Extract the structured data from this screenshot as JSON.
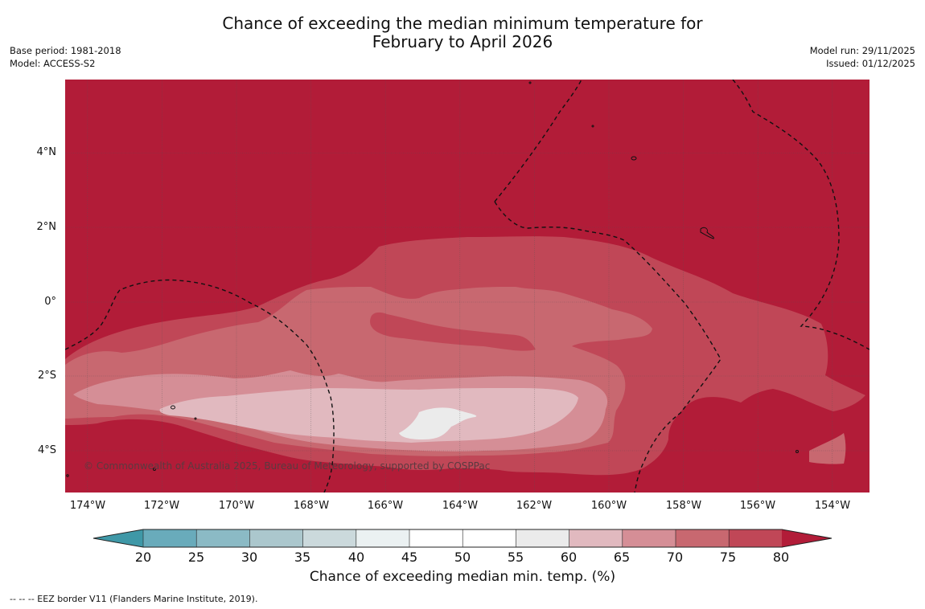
{
  "title": {
    "line1": "Chance of exceeding the median minimum temperature for",
    "line2": "February to April 2026"
  },
  "meta_left": {
    "base_period": "Base period: 1981-2018",
    "model": "Model: ACCESS-S2"
  },
  "meta_right": {
    "model_run": "Model run: 29/11/2025",
    "issued": "Issued: 01/12/2025"
  },
  "map": {
    "lat_labels": [
      "4°N",
      "2°N",
      "0°",
      "2°S",
      "4°S"
    ],
    "lon_labels": [
      "174°W",
      "172°W",
      "170°W",
      "168°W",
      "166°W",
      "164°W",
      "162°W",
      "160°W",
      "158°W",
      "156°W",
      "154°W"
    ],
    "copyright": "© Commonwealth of Australia 2025, Bureau of Meteorology, supported by COSPPac",
    "colors": {
      "gt80": "#b21c38",
      "75-80": "#c04757",
      "70-75": "#c86870",
      "65-70": "#d58e96",
      "60-65": "#e1b9bf",
      "55-60": "#ebebeb"
    }
  },
  "colorbar": {
    "ticks": [
      "20",
      "25",
      "30",
      "35",
      "40",
      "45",
      "50",
      "55",
      "60",
      "65",
      "70",
      "75",
      "80"
    ],
    "colors": [
      "#3f98a7",
      "#69abbb",
      "#8bbac5",
      "#abc7cd",
      "#cbd9dc",
      "#ebf1f2",
      "#ffffff",
      "#ffffff",
      "#ebebeb",
      "#e1b9bf",
      "#d58e96",
      "#c86870",
      "#c04757",
      "#b21c38"
    ],
    "label": "Chance of exceeding median min. temp. (%)"
  },
  "footer": "-- -- -- EEZ border V11 (Flanders Marine Institute, 2019)."
}
